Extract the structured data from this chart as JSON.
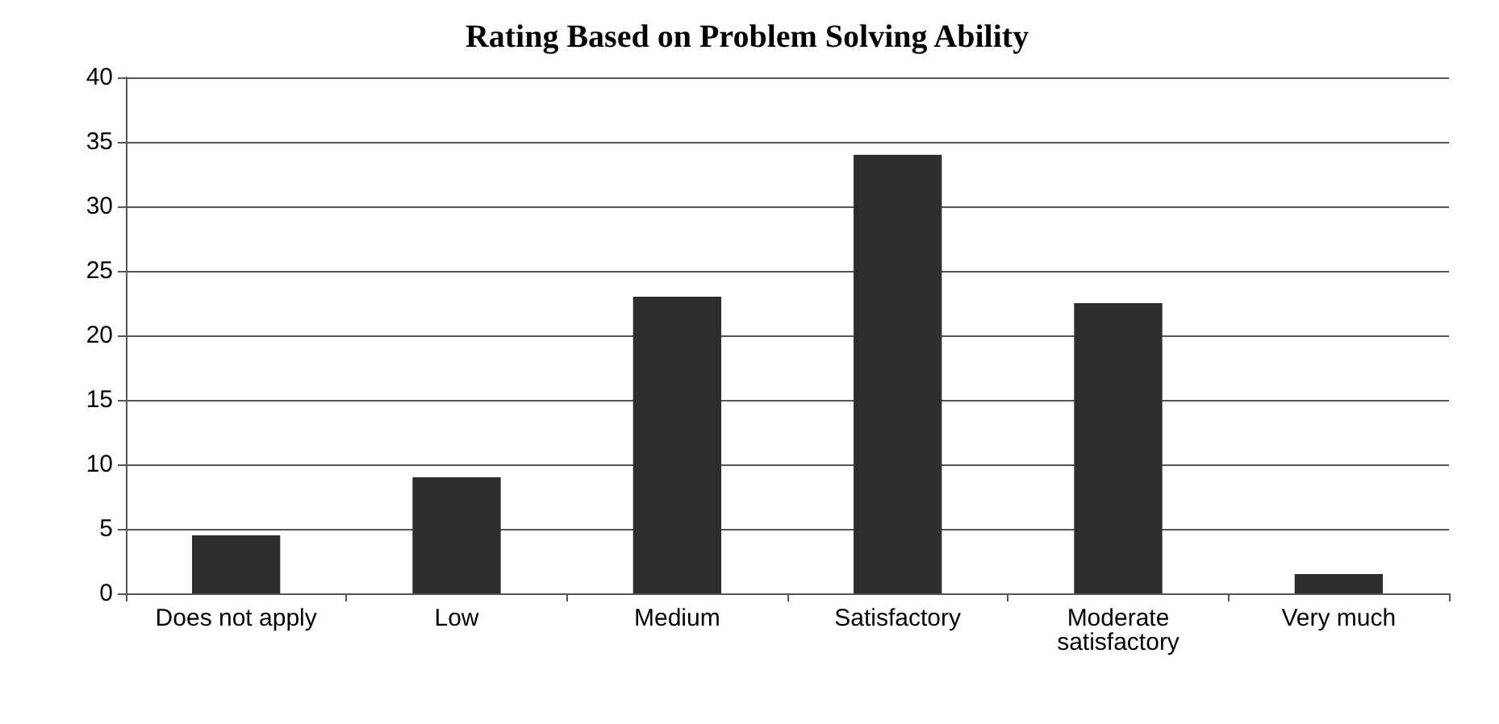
{
  "chart_data": {
    "type": "bar",
    "title": "Rating Based on Problem Solving Ability",
    "categories": [
      "Does not apply",
      "Low",
      "Medium",
      "Satisfactory",
      "Moderate satisfactory",
      "Very much"
    ],
    "values": [
      4.5,
      9,
      23,
      34,
      22.5,
      1.5
    ],
    "color": "#2e2e2e",
    "ylim": [
      0,
      40
    ],
    "yticks": [
      0,
      5,
      10,
      15,
      20,
      25,
      30,
      35,
      40
    ],
    "grid": "y"
  }
}
